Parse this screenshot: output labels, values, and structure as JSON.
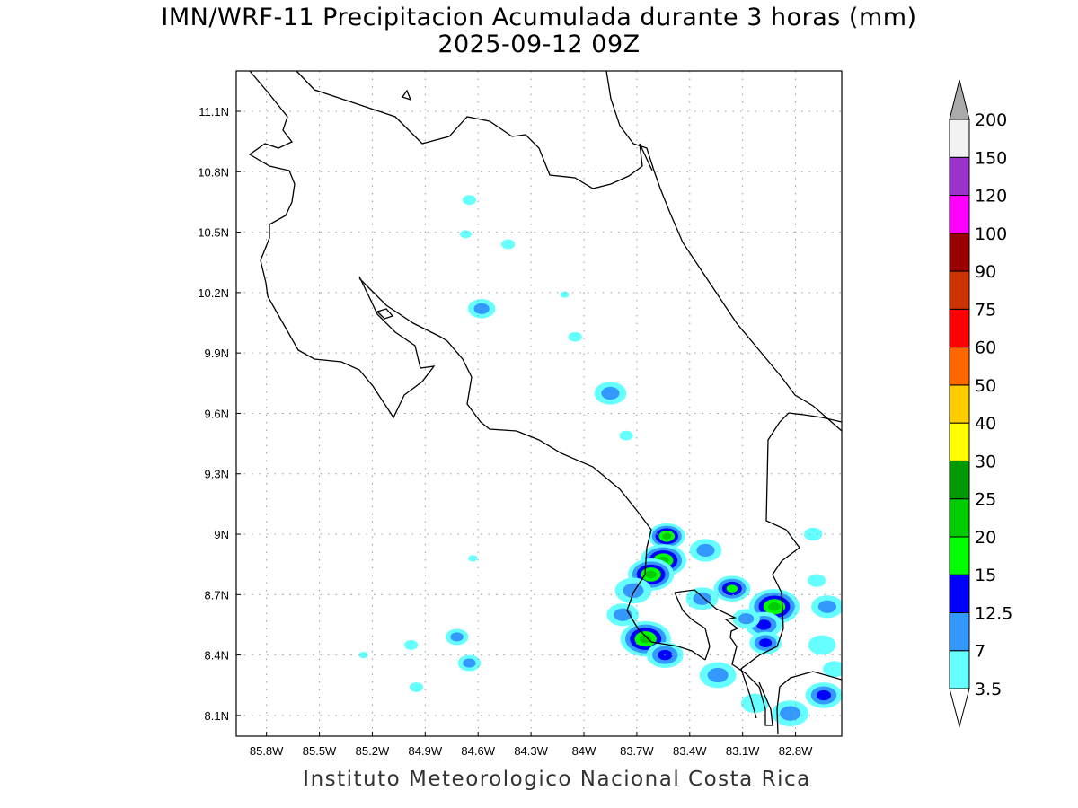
{
  "title": "IMN/WRF-11 Precipitacion Acumulada durante 3 horas (mm)",
  "subtitle": "2025-09-12 09Z",
  "footer": "Instituto Meteorologico Nacional Costa Rica",
  "map": {
    "lon_range": [
      -85.97,
      -82.54
    ],
    "lat_range": [
      8.0,
      11.3
    ],
    "lon_ticks": [
      {
        "v": -85.8,
        "label": "85.8W"
      },
      {
        "v": -85.5,
        "label": "85.5W"
      },
      {
        "v": -85.2,
        "label": "85.2W"
      },
      {
        "v": -84.9,
        "label": "84.9W"
      },
      {
        "v": -84.6,
        "label": "84.6W"
      },
      {
        "v": -84.3,
        "label": "84.3W"
      },
      {
        "v": -84.0,
        "label": "84W"
      },
      {
        "v": -83.7,
        "label": "83.7W"
      },
      {
        "v": -83.4,
        "label": "83.4W"
      },
      {
        "v": -83.1,
        "label": "83.1W"
      },
      {
        "v": -82.8,
        "label": "82.8W"
      }
    ],
    "lat_ticks": [
      {
        "v": 11.1,
        "label": "11.1N"
      },
      {
        "v": 10.8,
        "label": "10.8N"
      },
      {
        "v": 10.5,
        "label": "10.5N"
      },
      {
        "v": 10.2,
        "label": "10.2N"
      },
      {
        "v": 9.9,
        "label": "9.9N"
      },
      {
        "v": 9.6,
        "label": "9.6N"
      },
      {
        "v": 9.3,
        "label": "9.3N"
      },
      {
        "v": 9.0,
        "label": "9N"
      },
      {
        "v": 8.7,
        "label": "8.7N"
      },
      {
        "v": 8.4,
        "label": "8.4N"
      },
      {
        "v": 8.1,
        "label": "8.1N"
      }
    ],
    "precip_cells": [
      {
        "lon": -84.65,
        "lat": 10.66,
        "r": 0.03,
        "max": 3.5
      },
      {
        "lon": -84.67,
        "lat": 10.49,
        "r": 0.025,
        "max": 3.5
      },
      {
        "lon": -84.43,
        "lat": 10.44,
        "r": 0.03,
        "max": 3.5
      },
      {
        "lon": -84.58,
        "lat": 10.12,
        "r": 0.06,
        "max": 7
      },
      {
        "lon": -84.11,
        "lat": 10.19,
        "r": 0.02,
        "max": 3.5
      },
      {
        "lon": -84.05,
        "lat": 9.98,
        "r": 0.03,
        "max": 3.5
      },
      {
        "lon": -83.85,
        "lat": 9.7,
        "r": 0.07,
        "max": 7
      },
      {
        "lon": -83.76,
        "lat": 9.49,
        "r": 0.03,
        "max": 3.5
      },
      {
        "lon": -83.53,
        "lat": 8.99,
        "r": 0.08,
        "max": 20
      },
      {
        "lon": -83.55,
        "lat": 8.87,
        "r": 0.1,
        "max": 20
      },
      {
        "lon": -83.62,
        "lat": 8.8,
        "r": 0.1,
        "max": 20
      },
      {
        "lon": -83.72,
        "lat": 8.72,
        "r": 0.08,
        "max": 7
      },
      {
        "lon": -83.78,
        "lat": 8.6,
        "r": 0.07,
        "max": 7
      },
      {
        "lon": -83.31,
        "lat": 8.92,
        "r": 0.07,
        "max": 7
      },
      {
        "lon": -83.16,
        "lat": 8.73,
        "r": 0.08,
        "max": 15
      },
      {
        "lon": -83.33,
        "lat": 8.68,
        "r": 0.07,
        "max": 7
      },
      {
        "lon": -82.92,
        "lat": 8.64,
        "r": 0.11,
        "max": 20
      },
      {
        "lon": -83.65,
        "lat": 8.48,
        "r": 0.11,
        "max": 20
      },
      {
        "lon": -83.54,
        "lat": 8.4,
        "r": 0.08,
        "max": 12.5
      },
      {
        "lon": -83.24,
        "lat": 8.3,
        "r": 0.08,
        "max": 7
      },
      {
        "lon": -82.98,
        "lat": 8.55,
        "r": 0.08,
        "max": 12.5
      },
      {
        "lon": -82.97,
        "lat": 8.46,
        "r": 0.07,
        "max": 12.5
      },
      {
        "lon": -83.08,
        "lat": 8.58,
        "r": 0.06,
        "max": 7
      },
      {
        "lon": -82.62,
        "lat": 8.64,
        "r": 0.07,
        "max": 7
      },
      {
        "lon": -82.65,
        "lat": 8.45,
        "r": 0.06,
        "max": 3.5
      },
      {
        "lon": -82.64,
        "lat": 8.2,
        "r": 0.08,
        "max": 12.5
      },
      {
        "lon": -82.83,
        "lat": 8.11,
        "r": 0.08,
        "max": 7
      },
      {
        "lon": -83.03,
        "lat": 8.16,
        "r": 0.06,
        "max": 3.5
      },
      {
        "lon": -82.58,
        "lat": 8.33,
        "r": 0.05,
        "max": 3.5
      },
      {
        "lon": -84.72,
        "lat": 8.49,
        "r": 0.05,
        "max": 7
      },
      {
        "lon": -84.65,
        "lat": 8.36,
        "r": 0.05,
        "max": 7
      },
      {
        "lon": -84.95,
        "lat": 8.24,
        "r": 0.03,
        "max": 3.5
      },
      {
        "lon": -84.98,
        "lat": 8.45,
        "r": 0.03,
        "max": 3.5
      },
      {
        "lon": -85.25,
        "lat": 8.4,
        "r": 0.02,
        "max": 3.5
      },
      {
        "lon": -84.63,
        "lat": 8.88,
        "r": 0.02,
        "max": 3.5
      },
      {
        "lon": -82.7,
        "lat": 9.0,
        "r": 0.04,
        "max": 3.5
      },
      {
        "lon": -82.68,
        "lat": 8.77,
        "r": 0.04,
        "max": 3.5
      }
    ]
  },
  "colorbar": {
    "levels": [
      "3.5",
      "7",
      "12.5",
      "15",
      "20",
      "25",
      "30",
      "40",
      "50",
      "60",
      "75",
      "90",
      "100",
      "120",
      "150",
      "200"
    ],
    "colors": [
      "#ffffff",
      "#66ffff",
      "#3399ff",
      "#0000ff",
      "#00ff00",
      "#00cc00",
      "#009900",
      "#ffff00",
      "#ffcc00",
      "#ff6600",
      "#ff0000",
      "#cc3300",
      "#990000",
      "#ff00ff",
      "#9933cc",
      "#f2f2f2",
      "#aaaaaa"
    ]
  }
}
